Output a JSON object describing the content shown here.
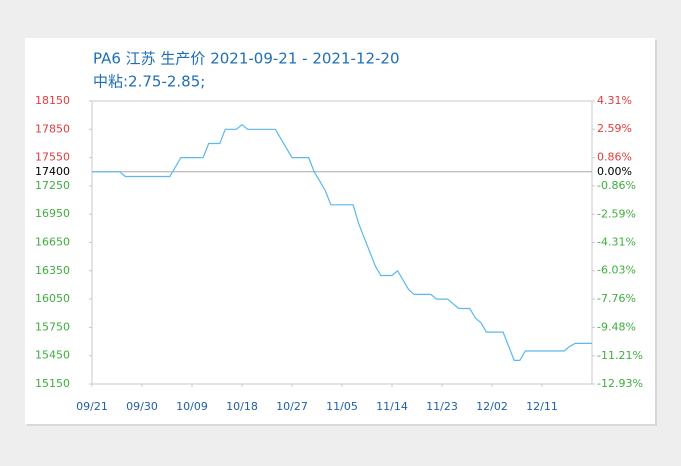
{
  "chart_data": {
    "type": "line",
    "title": "PA6 江苏 生产价 2021-09-21 - 2021-12-20",
    "subtitle": "中粘:2.75-2.85;",
    "x": [
      "09/21",
      "09/26",
      "09/27",
      "10/05",
      "10/07",
      "10/11",
      "10/12",
      "10/14",
      "10/15",
      "10/17",
      "10/18",
      "10/19",
      "10/24",
      "10/25",
      "10/26",
      "10/27",
      "10/30",
      "10/31",
      "11/01",
      "11/02",
      "11/03",
      "11/07",
      "11/08",
      "11/09",
      "11/10",
      "11/11",
      "11/12",
      "11/14",
      "11/15",
      "11/16",
      "11/17",
      "11/18",
      "11/21",
      "11/22",
      "11/23",
      "11/24",
      "11/26",
      "11/28",
      "11/29",
      "11/30",
      "12/01",
      "12/04",
      "12/05",
      "12/06",
      "12/07",
      "12/08",
      "12/15",
      "12/16",
      "12/17",
      "12/20"
    ],
    "values": [
      17400,
      17400,
      17350,
      17350,
      17550,
      17550,
      17700,
      17700,
      17850,
      17850,
      17900,
      17850,
      17850,
      17750,
      17650,
      17550,
      17550,
      17400,
      17300,
      17200,
      17050,
      17050,
      16850,
      16700,
      16550,
      16400,
      16300,
      16300,
      16350,
      16250,
      16150,
      16100,
      16100,
      16050,
      16050,
      16050,
      15950,
      15950,
      15850,
      15800,
      15700,
      15700,
      15550,
      15400,
      15400,
      15500,
      15500,
      15550,
      15580,
      15580
    ],
    "color": "#5cb8ea",
    "xlim": [
      "09/21",
      "12/20"
    ],
    "xticks": [
      "09/21",
      "09/30",
      "10/09",
      "10/18",
      "10/27",
      "11/05",
      "11/14",
      "11/23",
      "12/02",
      "12/11"
    ],
    "ylim": [
      15150,
      18150
    ],
    "yticks": [
      18150,
      17850,
      17550,
      17250,
      16950,
      16650,
      16350,
      16050,
      15750,
      15450,
      15150
    ],
    "baseline": 17400,
    "y2lim": [
      -12.93,
      4.31
    ],
    "y2ticks": [
      {
        "value": 4.31,
        "label": "4.31%"
      },
      {
        "value": 2.59,
        "label": "2.59%"
      },
      {
        "value": 0.86,
        "label": "0.86%"
      },
      {
        "value": -0.86,
        "label": "-0.86%"
      },
      {
        "value": -2.59,
        "label": "-2.59%"
      },
      {
        "value": -4.31,
        "label": "-4.31%"
      },
      {
        "value": -6.03,
        "label": "-6.03%"
      },
      {
        "value": -7.76,
        "label": "-7.76%"
      },
      {
        "value": -9.48,
        "label": "-9.48%"
      },
      {
        "value": -11.21,
        "label": "-11.21%"
      },
      {
        "value": -12.93,
        "label": "-12.93%"
      }
    ],
    "y2baseline": {
      "value": 0,
      "label": "0.00%"
    },
    "up_color": "#e03c3c",
    "down_color": "#3dae3d",
    "flat_color": "#000000"
  }
}
